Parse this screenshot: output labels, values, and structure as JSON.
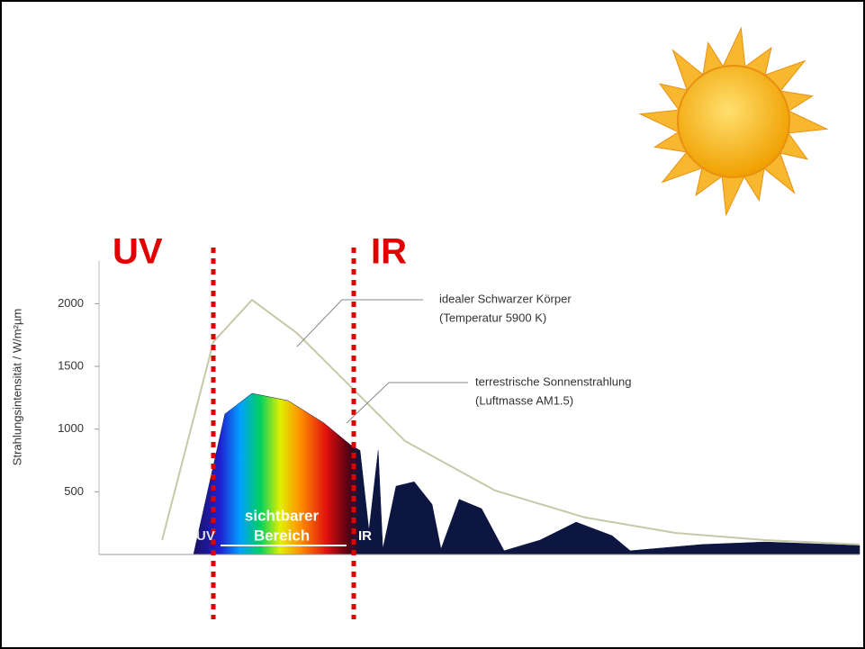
{
  "chart_data": {
    "type": "area",
    "title_left": "UV",
    "title_right": "IR",
    "ylabel": "Strahlungsintensität  /  W/m²µm",
    "xlim": [
      0,
      2640
    ],
    "ylim": [
      0,
      2340
    ],
    "yticks": [
      500,
      1000,
      1500,
      2000
    ],
    "series": [
      {
        "name": "idealer Schwarzer Körper",
        "note": "(Temperatur 5900 K)",
        "color": "#c8c8a8",
        "style": "line",
        "x": [
          219,
          397,
          531,
          687,
          875,
          1062,
          1375,
          1687,
          2000,
          2312,
          2640
        ],
        "values": [
          115,
          1695,
          2030,
          1765,
          1335,
          905,
          510,
          295,
          172,
          115,
          80
        ]
      },
      {
        "name": "terrestrische Sonnenstrahlung",
        "note": "(Luftmasse AM1.5)",
        "color": "#0d1640",
        "style": "area",
        "x": [
          328,
          437,
          531,
          656,
          781,
          875,
          906,
          937,
          969,
          985,
          1031,
          1094,
          1156,
          1187,
          1250,
          1328,
          1406,
          1531,
          1656,
          1781,
          1844,
          2094,
          2312,
          2640
        ],
        "values": [
          0,
          1120,
          1285,
          1227,
          1048,
          870,
          830,
          190,
          830,
          43,
          545,
          580,
          400,
          43,
          440,
          365,
          30,
          115,
          258,
          150,
          30,
          80,
          100,
          72
        ]
      }
    ],
    "regions": [
      "UV",
      "sichtbarer",
      "Bereich",
      "IR"
    ]
  }
}
